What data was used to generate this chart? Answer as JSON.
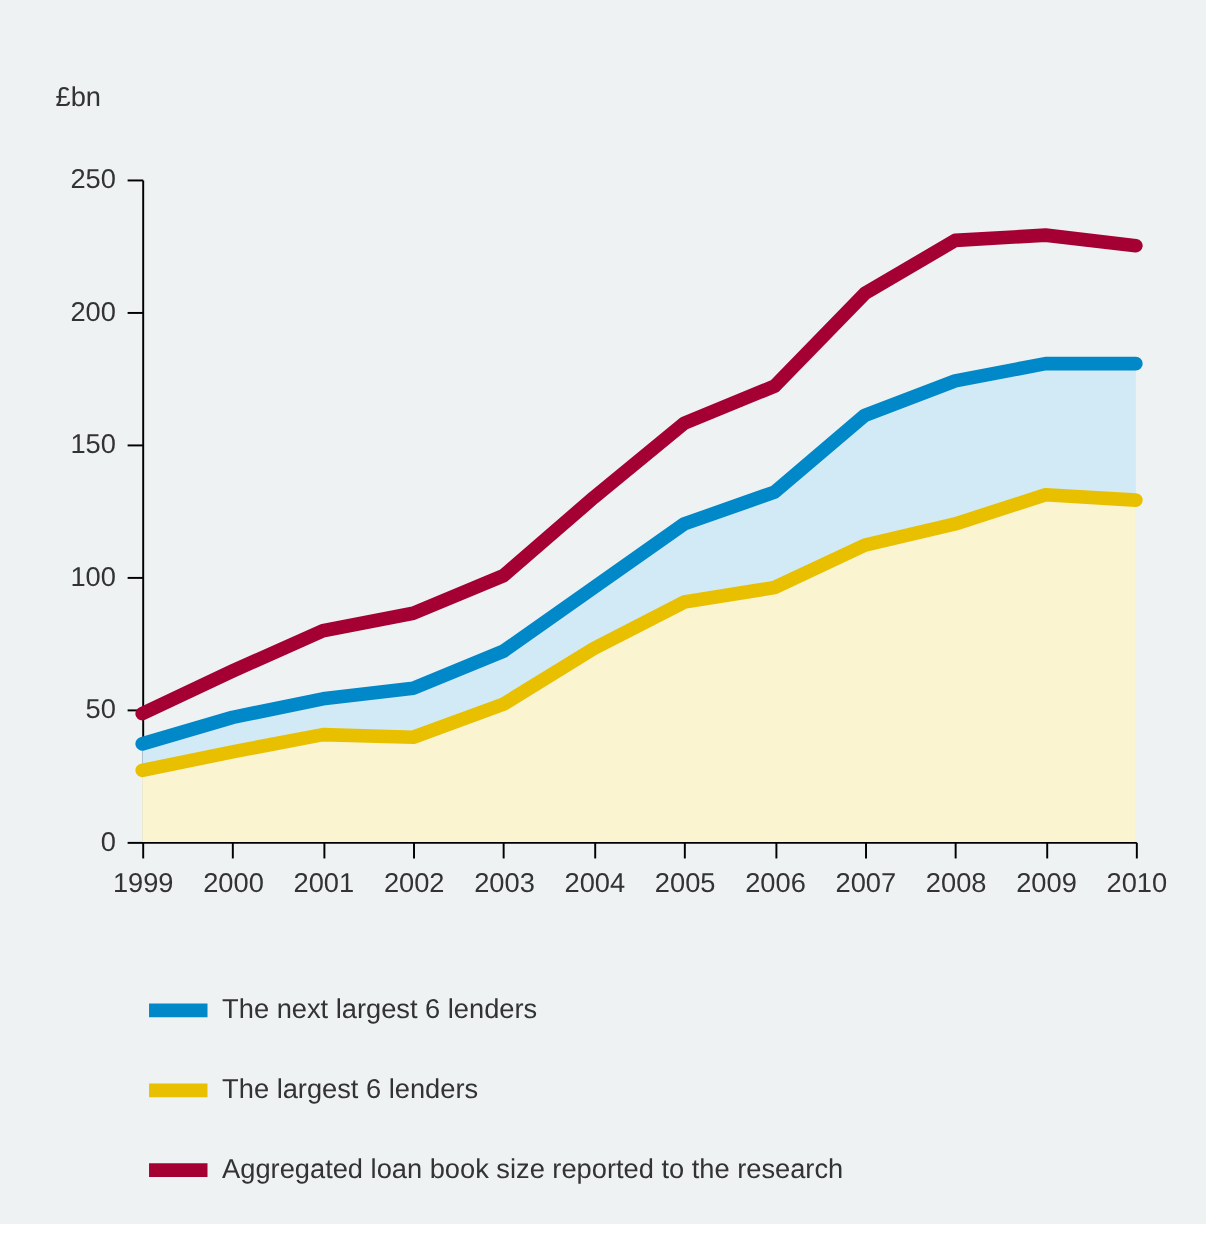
{
  "chart_data": {
    "type": "area",
    "ylabel": "£bn",
    "x": [
      1999,
      2000,
      2001,
      2002,
      2003,
      2004,
      2005,
      2006,
      2007,
      2008,
      2009,
      2010
    ],
    "xlim": [
      1999,
      2010
    ],
    "xticks": [
      1999,
      2000,
      2001,
      2002,
      2003,
      2004,
      2005,
      2006,
      2007,
      2008,
      2009,
      2010
    ],
    "ylim": [
      0,
      250
    ],
    "yticks": [
      0,
      50,
      100,
      150,
      200,
      250
    ],
    "grid": false,
    "legend": "bottom",
    "line_style": "solid",
    "marker": "none",
    "series": [
      {
        "name": "The next largest 6 lenders",
        "color": "#0088c8",
        "values": [
          37,
          47,
          54,
          58,
          72,
          96,
          120,
          132,
          161,
          174,
          180.5,
          180.5
        ]
      },
      {
        "name": "The largest 6 lenders",
        "color": "#e8c000",
        "values": [
          27,
          34,
          40.5,
          39.5,
          52,
          73,
          90.5,
          96,
          112,
          120,
          131,
          129
        ]
      },
      {
        "name": "Aggregated loan book size reported to the research",
        "color": "#a50034",
        "type": "line",
        "values": [
          48.4,
          64.5,
          79.7,
          86.3,
          100.5,
          130,
          158,
          172,
          207,
          227,
          229,
          225
        ]
      }
    ]
  }
}
